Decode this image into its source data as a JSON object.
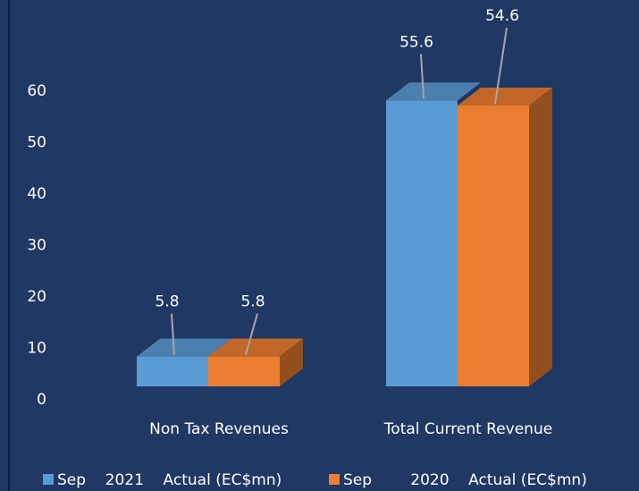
{
  "chart_data": {
    "type": "bar",
    "categories": [
      "Non Tax Revenues",
      "Total Current Revenue"
    ],
    "series": [
      {
        "name": "Sep    2021    Actual (EC$mn)",
        "values": [
          5.8,
          55.6
        ],
        "color": "#5b9bd5",
        "labels": [
          "5.8",
          "55.6"
        ]
      },
      {
        "name": "Sep        2020    Actual (EC$mn)",
        "values": [
          5.8,
          54.6
        ],
        "color": "#ed7d31",
        "labels": [
          "5.8",
          "54.6"
        ]
      }
    ],
    "yticks": [
      "0",
      "10",
      "20",
      "30",
      "40",
      "50",
      "60"
    ],
    "ylim": [
      0,
      60
    ],
    "grid": false,
    "legend": "bottom",
    "style": "3d-clustered-column"
  }
}
